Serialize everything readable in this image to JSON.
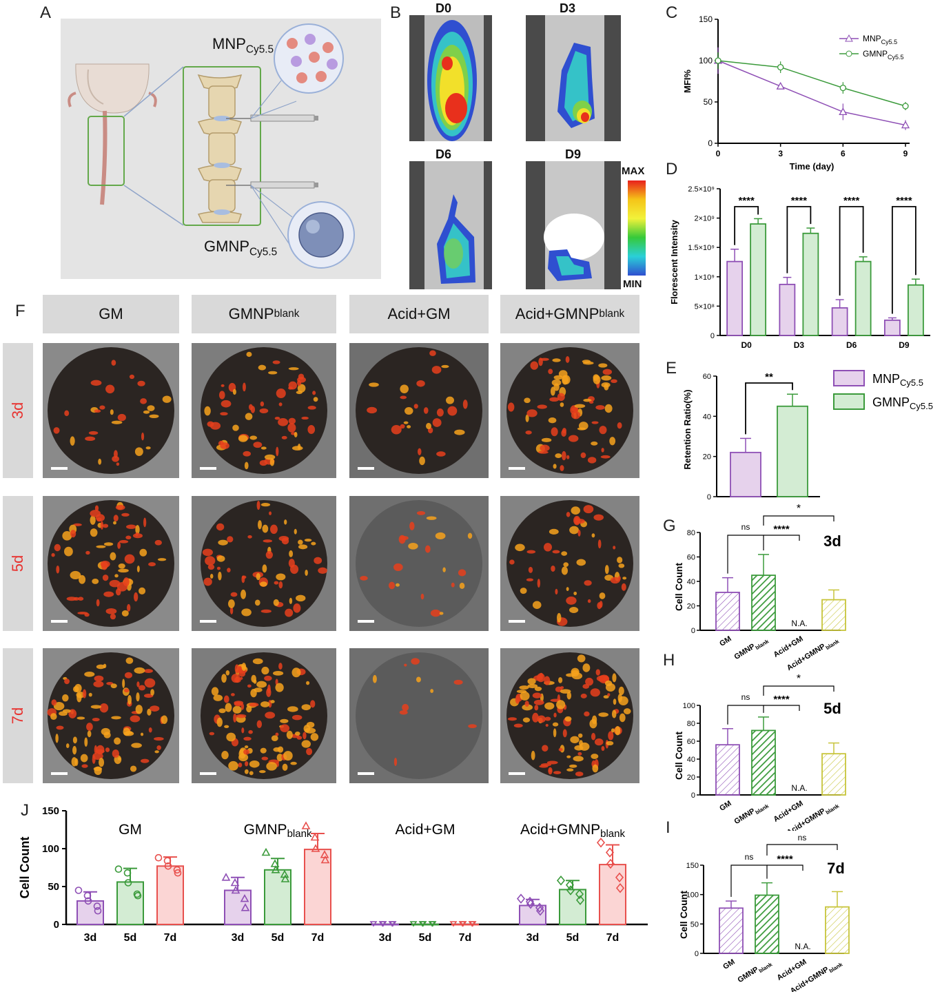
{
  "panels": {
    "A": "A",
    "B": "B",
    "C": "C",
    "D": "D",
    "E": "E",
    "F": "F",
    "G": "G",
    "H": "H",
    "I": "I",
    "J": "J"
  },
  "schematic": {
    "top_label_main": "MNP",
    "top_label_sub": "Cy5.5",
    "bottom_label_main": "GMNP",
    "bottom_label_sub": "Cy5.5"
  },
  "ivis": {
    "tiles": [
      "D0",
      "D3",
      "D6",
      "D9"
    ],
    "scale_max": "MAX",
    "scale_min": "MIN"
  },
  "microscopy": {
    "columns": [
      {
        "main": "GM",
        "sub": ""
      },
      {
        "main": "GMNP",
        "sub": "blank"
      },
      {
        "main": "Acid+GM",
        "sub": ""
      },
      {
        "main": "Acid+GMNP",
        "sub": "blank"
      }
    ],
    "rows": [
      "3d",
      "5d",
      "7d"
    ]
  },
  "colors": {
    "purple": "#8e4fb5",
    "purple_fill": "#e6d2ec",
    "green": "#3a9a3a",
    "green_fill": "#d3ecd3",
    "red": "#e8504d",
    "red_fill": "#fbd5d4",
    "yellow": "#c7c43a"
  },
  "chart_data": [
    {
      "panel": "C",
      "type": "line",
      "xlabel": "Time (day)",
      "ylabel": "MFI%",
      "x": [
        0,
        3,
        6,
        9
      ],
      "xticks": [
        "0",
        "3",
        "6",
        "9"
      ],
      "ylim": [
        0,
        150
      ],
      "yticks": [
        "0",
        "50",
        "100",
        "150"
      ],
      "legend_position": "top-right",
      "series": [
        {
          "name_main": "MNP",
          "name_sub": "Cy5.5",
          "marker": "triangle",
          "values": [
            100,
            69,
            38,
            22
          ],
          "err": [
            16,
            2,
            10,
            6
          ]
        },
        {
          "name_main": "GMNP",
          "name_sub": "Cy5.5",
          "marker": "circle",
          "values": [
            100,
            92,
            67,
            45
          ],
          "err": [
            10,
            7,
            7,
            5
          ]
        }
      ]
    },
    {
      "panel": "D",
      "type": "bar",
      "ylabel": "Florescent Intensity",
      "categories": [
        "D0",
        "D3",
        "D6",
        "D9"
      ],
      "ylim": [
        0,
        2500000000
      ],
      "yticks": [
        "0",
        "5×10⁸",
        "1×10⁹",
        "1.5×10⁹",
        "2×10⁹",
        "2.5×10⁹"
      ],
      "significance": [
        "****",
        "****",
        "****",
        "****"
      ],
      "series": [
        {
          "name": "MNP",
          "values": [
            1260000000,
            870000000,
            470000000,
            260000000
          ],
          "err": [
            210000000,
            120000000,
            140000000,
            40000000
          ]
        },
        {
          "name": "GMNP",
          "values": [
            1900000000,
            1740000000,
            1260000000,
            860000000
          ],
          "err": [
            90000000,
            90000000,
            80000000,
            100000000
          ]
        }
      ]
    },
    {
      "panel": "E",
      "type": "bar",
      "ylabel": "Retention Ratio(%)",
      "ylim": [
        0,
        60
      ],
      "yticks": [
        "0",
        "20",
        "40",
        "60"
      ],
      "significance": "**",
      "legend": [
        {
          "main": "MNP",
          "sub": "Cy5.5"
        },
        {
          "main": "GMNP",
          "sub": "Cy5.5"
        }
      ],
      "values": [
        22,
        45
      ],
      "err": [
        7,
        6
      ]
    },
    {
      "panel": "G",
      "type": "bar",
      "day": "3d",
      "ylabel": "Cell Count",
      "ylim": [
        0,
        80
      ],
      "yticks": [
        "0",
        "20",
        "40",
        "60",
        "80"
      ],
      "categories": [
        {
          "main": "GM",
          "sub": ""
        },
        {
          "main": "GMNP",
          "sub": "blank"
        },
        {
          "main": "Acid+GM",
          "sub": ""
        },
        {
          "main": "Acid+GMNP",
          "sub": "blank"
        }
      ],
      "values": [
        31,
        45,
        0,
        25
      ],
      "err": [
        12,
        17,
        0,
        8
      ],
      "na": "N.A.",
      "brackets": [
        "ns",
        "****",
        "*"
      ]
    },
    {
      "panel": "H",
      "type": "bar",
      "day": "5d",
      "ylabel": "Cell Count",
      "ylim": [
        0,
        100
      ],
      "yticks": [
        "0",
        "20",
        "40",
        "60",
        "80",
        "100"
      ],
      "categories": [
        {
          "main": "GM",
          "sub": ""
        },
        {
          "main": "GMNP",
          "sub": "blank"
        },
        {
          "main": "Acid+GM",
          "sub": ""
        },
        {
          "main": "Acid+GMNP",
          "sub": "blank"
        }
      ],
      "values": [
        56,
        72,
        0,
        46
      ],
      "err": [
        18,
        15,
        0,
        12
      ],
      "na": "N.A.",
      "brackets": [
        "ns",
        "****",
        "*"
      ]
    },
    {
      "panel": "I",
      "type": "bar",
      "day": "7d",
      "ylabel": "Cell Count",
      "ylim": [
        0,
        150
      ],
      "yticks": [
        "0",
        "50",
        "100",
        "150"
      ],
      "categories": [
        {
          "main": "GM",
          "sub": ""
        },
        {
          "main": "GMNP",
          "sub": "blank"
        },
        {
          "main": "Acid+GM",
          "sub": ""
        },
        {
          "main": "Acid+GMNP",
          "sub": "blank"
        }
      ],
      "values": [
        77,
        99,
        0,
        79
      ],
      "err": [
        12,
        21,
        0,
        26
      ],
      "na": "N.A.",
      "brackets": [
        "ns",
        "****",
        "ns"
      ]
    },
    {
      "panel": "J",
      "type": "bar",
      "ylabel": "Cell Count",
      "ylim": [
        0,
        150
      ],
      "yticks": [
        "0",
        "50",
        "100",
        "150"
      ],
      "day_labels": [
        "3d",
        "5d",
        "7d"
      ],
      "groups": [
        {
          "main": "GM",
          "sub": "",
          "marker": "circle",
          "values": [
            31,
            56,
            77
          ],
          "err": [
            12,
            18,
            12
          ],
          "points": [
            [
              45,
              38,
              31,
              24,
              18
            ],
            [
              73,
              68,
              55,
              40,
              38
            ],
            [
              88,
              84,
              77,
              72,
              68
            ]
          ]
        },
        {
          "main": "GMNP",
          "sub": "blank",
          "marker": "triangle",
          "values": [
            45,
            72,
            99
          ],
          "err": [
            17,
            15,
            21
          ],
          "points": [
            [
              62,
              55,
              45,
              34,
              22
            ],
            [
              95,
              80,
              72,
              66,
              60
            ],
            [
              130,
              115,
              100,
              92,
              85
            ]
          ]
        },
        {
          "main": "Acid+GM",
          "sub": "",
          "marker": "triangle-down",
          "values": [
            0,
            0,
            0
          ],
          "err": [
            0,
            0,
            0
          ],
          "points": [
            [
              0,
              0,
              0,
              0,
              0
            ],
            [
              0,
              0,
              0,
              0,
              0
            ],
            [
              0,
              0,
              0,
              0,
              0
            ]
          ]
        },
        {
          "main": "Acid+GMNP",
          "sub": "blank",
          "marker": "diamond",
          "values": [
            25,
            46,
            79
          ],
          "err": [
            8,
            12,
            26
          ],
          "points": [
            [
              34,
              30,
              27,
              22,
              18
            ],
            [
              58,
              52,
              45,
              40,
              32
            ],
            [
              108,
              95,
              80,
              62,
              48
            ]
          ]
        }
      ]
    }
  ]
}
